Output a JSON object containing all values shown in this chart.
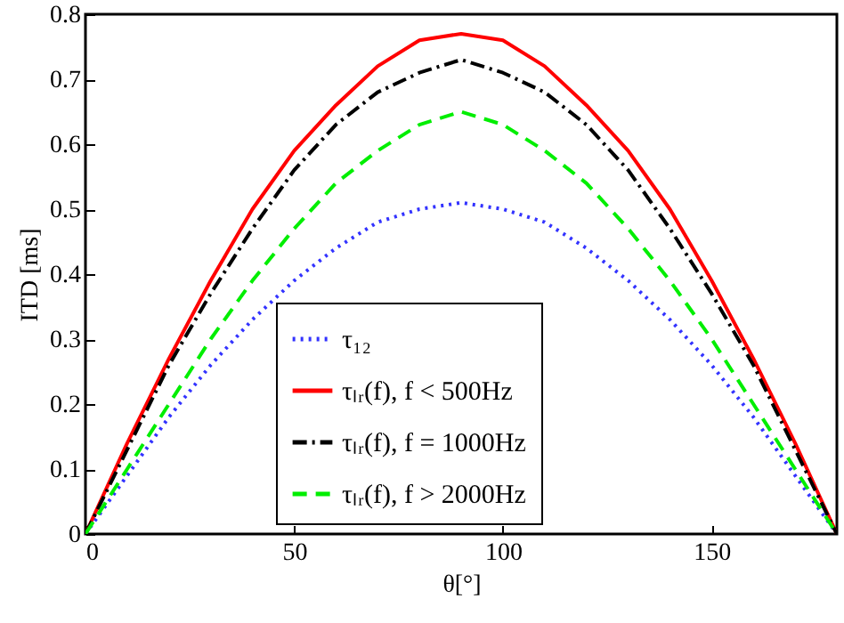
{
  "chart_data": {
    "type": "line",
    "xlabel": "θ[°]",
    "ylabel": "ITD [ms]",
    "x": [
      0,
      10,
      20,
      30,
      40,
      50,
      60,
      70,
      80,
      90,
      100,
      110,
      120,
      130,
      140,
      150,
      160,
      170,
      180
    ],
    "xlim": [
      0,
      180
    ],
    "xticks": [
      0,
      50,
      100,
      150
    ],
    "ylim": [
      0,
      0.8
    ],
    "yticks": [
      0,
      0.1,
      0.2,
      0.3,
      0.4,
      0.5,
      0.6,
      0.7,
      0.8
    ],
    "legend": "bottom",
    "grid": false,
    "marker": "none",
    "series": [
      {
        "name": "τ₁₂",
        "color": "#3333ff",
        "line_style": "dotted",
        "values": [
          0,
          0.09,
          0.18,
          0.26,
          0.33,
          0.39,
          0.44,
          0.48,
          0.5,
          0.51,
          0.5,
          0.48,
          0.44,
          0.39,
          0.33,
          0.26,
          0.18,
          0.09,
          0
        ]
      },
      {
        "name": "τₗᵣ(f), f < 500Hz",
        "color": "#ff0000",
        "line_style": "solid",
        "values": [
          0,
          0.14,
          0.27,
          0.39,
          0.5,
          0.59,
          0.66,
          0.72,
          0.76,
          0.77,
          0.76,
          0.72,
          0.66,
          0.59,
          0.5,
          0.39,
          0.27,
          0.14,
          0
        ]
      },
      {
        "name": "τₗᵣ(f), f = 1000Hz",
        "color": "#000000",
        "line_style": "dashdot",
        "values": [
          0,
          0.13,
          0.26,
          0.37,
          0.47,
          0.56,
          0.63,
          0.68,
          0.71,
          0.73,
          0.71,
          0.68,
          0.63,
          0.56,
          0.47,
          0.37,
          0.26,
          0.13,
          0
        ]
      },
      {
        "name": "τₗᵣ(f), f > 2000Hz",
        "color": "#00ee00",
        "line_style": "dashed",
        "values": [
          0,
          0.1,
          0.2,
          0.3,
          0.39,
          0.47,
          0.54,
          0.59,
          0.63,
          0.65,
          0.63,
          0.59,
          0.54,
          0.47,
          0.39,
          0.3,
          0.2,
          0.1,
          0
        ]
      }
    ]
  }
}
